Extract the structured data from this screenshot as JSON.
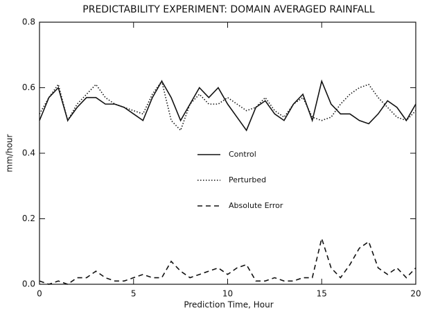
{
  "chart_data": {
    "type": "line",
    "title": "PREDICTABILITY EXPERIMENT: DOMAIN AVERAGED RAINFALL",
    "x_label": "Prediction Time,  Hour",
    "y_label": "mm/hour",
    "x": [
      0,
      0.5,
      1,
      1.5,
      2,
      2.5,
      3,
      3.5,
      4,
      4.5,
      5,
      5.5,
      6,
      6.5,
      7,
      7.5,
      8,
      8.5,
      9,
      9.5,
      10,
      10.5,
      11,
      11.5,
      12,
      12.5,
      13,
      13.5,
      14,
      14.5,
      15,
      15.5,
      16,
      16.5,
      17,
      17.5,
      18,
      18.5,
      19,
      19.5,
      20
    ],
    "series": [
      {
        "name": "Control",
        "color": "#111111",
        "dash": "solid",
        "values": [
          0.5,
          0.57,
          0.6,
          0.5,
          0.54,
          0.57,
          0.57,
          0.55,
          0.55,
          0.54,
          0.52,
          0.5,
          0.57,
          0.62,
          0.57,
          0.5,
          0.55,
          0.6,
          0.57,
          0.6,
          0.55,
          0.51,
          0.47,
          0.54,
          0.56,
          0.52,
          0.5,
          0.55,
          0.58,
          0.5,
          0.62,
          0.55,
          0.52,
          0.52,
          0.5,
          0.49,
          0.52,
          0.56,
          0.54,
          0.5,
          0.55
        ]
      },
      {
        "name": "Perturbed",
        "color": "#111111",
        "dash": "dotted",
        "values": [
          0.52,
          0.57,
          0.61,
          0.5,
          0.55,
          0.58,
          0.61,
          0.57,
          0.55,
          0.54,
          0.53,
          0.52,
          0.58,
          0.62,
          0.5,
          0.47,
          0.55,
          0.58,
          0.55,
          0.55,
          0.57,
          0.55,
          0.53,
          0.54,
          0.57,
          0.53,
          0.51,
          0.55,
          0.57,
          0.51,
          0.5,
          0.51,
          0.55,
          0.58,
          0.6,
          0.61,
          0.57,
          0.54,
          0.51,
          0.5,
          0.53
        ]
      },
      {
        "name": "Absolute Error",
        "color": "#111111",
        "dash": "dashed",
        "values": [
          0.01,
          0.0,
          0.01,
          0.0,
          0.02,
          0.02,
          0.04,
          0.02,
          0.01,
          0.01,
          0.02,
          0.03,
          0.02,
          0.02,
          0.07,
          0.04,
          0.02,
          0.03,
          0.04,
          0.05,
          0.03,
          0.05,
          0.06,
          0.01,
          0.01,
          0.02,
          0.01,
          0.01,
          0.02,
          0.02,
          0.14,
          0.05,
          0.02,
          0.06,
          0.11,
          0.13,
          0.05,
          0.03,
          0.05,
          0.02,
          0.05
        ]
      }
    ],
    "xlim": [
      0,
      20
    ],
    "ylim": [
      0,
      0.8
    ],
    "xticks": [
      0,
      5,
      10,
      15,
      20
    ],
    "yticks": [
      {
        "value": 0,
        "label": "0.0"
      },
      0.2,
      0.4,
      0.6,
      0.8
    ],
    "grid": false
  }
}
